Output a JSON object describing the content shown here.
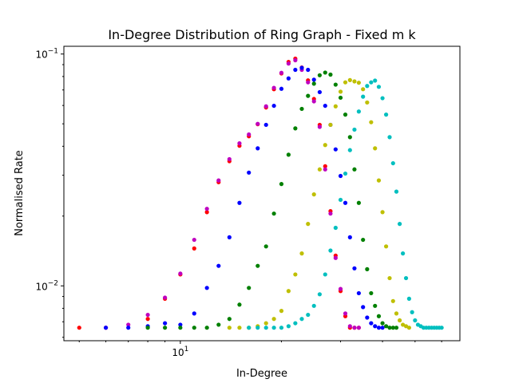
{
  "chart_data": {
    "type": "scatter",
    "title": "In-Degree Distribution of Ring Graph - Fixed m k",
    "xlabel": "In-Degree",
    "ylabel": "Normalised Rate",
    "xscale": "log",
    "yscale": "log",
    "xlim": [
      4.5,
      68
    ],
    "ylim": [
      0.0058,
      0.108
    ],
    "x_ticks": [
      {
        "value": 10,
        "base": "10",
        "exp": "1"
      }
    ],
    "y_ticks": [
      {
        "value": 0.01,
        "base": "10",
        "exp": "−2"
      },
      {
        "value": 0.1,
        "base": "10",
        "exp": "−1"
      }
    ],
    "legend": "none",
    "grid": false,
    "series": [
      {
        "color": "#ff0000",
        "points": [
          [
            5,
            0.0066
          ],
          [
            6,
            0.0066
          ],
          [
            8,
            0.0072
          ],
          [
            9,
            0.0088
          ],
          [
            10,
            0.0112
          ],
          [
            11,
            0.0145
          ],
          [
            12,
            0.0208
          ],
          [
            13,
            0.028
          ],
          [
            14,
            0.0345
          ],
          [
            15,
            0.0402
          ],
          [
            16,
            0.0442
          ],
          [
            17,
            0.0498
          ],
          [
            18,
            0.0588
          ],
          [
            19,
            0.0705
          ],
          [
            20,
            0.0825
          ],
          [
            21,
            0.0925
          ],
          [
            22,
            0.0955
          ],
          [
            23,
            0.0875
          ],
          [
            24,
            0.077
          ],
          [
            25,
            0.064
          ],
          [
            26,
            0.0495
          ],
          [
            27,
            0.0328
          ],
          [
            28,
            0.021
          ],
          [
            29,
            0.0135
          ],
          [
            30,
            0.0095
          ],
          [
            31,
            0.0074
          ],
          [
            32,
            0.0066
          ],
          [
            33,
            0.0066
          ],
          [
            34,
            0.0066
          ]
        ]
      },
      {
        "color": "#bf00bf",
        "points": [
          [
            6,
            0.0066
          ],
          [
            7,
            0.0068
          ],
          [
            8,
            0.0075
          ],
          [
            9,
            0.0089
          ],
          [
            10,
            0.0113
          ],
          [
            11,
            0.0158
          ],
          [
            12,
            0.0215
          ],
          [
            13,
            0.0285
          ],
          [
            14,
            0.0352
          ],
          [
            15,
            0.0412
          ],
          [
            16,
            0.045
          ],
          [
            17,
            0.05
          ],
          [
            18,
            0.0595
          ],
          [
            19,
            0.0715
          ],
          [
            20,
            0.083
          ],
          [
            21,
            0.091
          ],
          [
            22,
            0.094
          ],
          [
            23,
            0.0855
          ],
          [
            24,
            0.0755
          ],
          [
            25,
            0.0625
          ],
          [
            26,
            0.0485
          ],
          [
            27,
            0.0318
          ],
          [
            28,
            0.0205
          ],
          [
            29,
            0.0132
          ],
          [
            30,
            0.0097
          ],
          [
            31,
            0.0076
          ],
          [
            32,
            0.0067
          ],
          [
            33,
            0.0066
          ],
          [
            34,
            0.0066
          ]
        ]
      },
      {
        "color": "#0000ff",
        "points": [
          [
            6,
            0.0066
          ],
          [
            7,
            0.0066
          ],
          [
            8,
            0.0067
          ],
          [
            9,
            0.0069
          ],
          [
            10,
            0.0068
          ],
          [
            11,
            0.0076
          ],
          [
            12,
            0.0098
          ],
          [
            13,
            0.0122
          ],
          [
            14,
            0.0162
          ],
          [
            15,
            0.0228
          ],
          [
            16,
            0.0308
          ],
          [
            17,
            0.0392
          ],
          [
            18,
            0.0495
          ],
          [
            19,
            0.0598
          ],
          [
            20,
            0.0708
          ],
          [
            21,
            0.0785
          ],
          [
            22,
            0.0855
          ],
          [
            23,
            0.0872
          ],
          [
            24,
            0.0855
          ],
          [
            25,
            0.0775
          ],
          [
            26,
            0.0685
          ],
          [
            27,
            0.0598
          ],
          [
            28,
            0.0495
          ],
          [
            29,
            0.0388
          ],
          [
            30,
            0.0298
          ],
          [
            31,
            0.0228
          ],
          [
            32,
            0.0162
          ],
          [
            33,
            0.0119
          ],
          [
            34,
            0.0093
          ],
          [
            35,
            0.0081
          ],
          [
            36,
            0.0073
          ],
          [
            37,
            0.0069
          ],
          [
            38,
            0.0067
          ],
          [
            39,
            0.0066
          ],
          [
            40,
            0.0066
          ]
        ]
      },
      {
        "color": "#008000",
        "points": [
          [
            8,
            0.0066
          ],
          [
            9,
            0.0066
          ],
          [
            10,
            0.0066
          ],
          [
            11,
            0.0066
          ],
          [
            12,
            0.0066
          ],
          [
            13,
            0.0068
          ],
          [
            14,
            0.0072
          ],
          [
            15,
            0.0083
          ],
          [
            16,
            0.0098
          ],
          [
            17,
            0.0122
          ],
          [
            18,
            0.0148
          ],
          [
            19,
            0.0205
          ],
          [
            20,
            0.0275
          ],
          [
            21,
            0.0368
          ],
          [
            22,
            0.0478
          ],
          [
            23,
            0.058
          ],
          [
            24,
            0.066
          ],
          [
            25,
            0.0745
          ],
          [
            26,
            0.081
          ],
          [
            27,
            0.0832
          ],
          [
            28,
            0.0815
          ],
          [
            29,
            0.0738
          ],
          [
            30,
            0.0648
          ],
          [
            31,
            0.0548
          ],
          [
            32,
            0.0438
          ],
          [
            33,
            0.0318
          ],
          [
            34,
            0.0228
          ],
          [
            35,
            0.0158
          ],
          [
            36,
            0.0118
          ],
          [
            37,
            0.0093
          ],
          [
            38,
            0.0082
          ],
          [
            39,
            0.0074
          ],
          [
            40,
            0.0069
          ],
          [
            41,
            0.0067
          ],
          [
            42,
            0.0066
          ],
          [
            43,
            0.0066
          ],
          [
            44,
            0.0066
          ]
        ]
      },
      {
        "color": "#bfbf00",
        "points": [
          [
            14,
            0.0066
          ],
          [
            15,
            0.0066
          ],
          [
            16,
            0.0066
          ],
          [
            17,
            0.0067
          ],
          [
            18,
            0.0069
          ],
          [
            19,
            0.0072
          ],
          [
            20,
            0.0078
          ],
          [
            21,
            0.0095
          ],
          [
            22,
            0.0112
          ],
          [
            23,
            0.0138
          ],
          [
            24,
            0.0185
          ],
          [
            25,
            0.0248
          ],
          [
            26,
            0.0318
          ],
          [
            27,
            0.0405
          ],
          [
            28,
            0.0495
          ],
          [
            29,
            0.0595
          ],
          [
            30,
            0.0688
          ],
          [
            31,
            0.0755
          ],
          [
            32,
            0.0772
          ],
          [
            33,
            0.0762
          ],
          [
            34,
            0.0752
          ],
          [
            35,
            0.0705
          ],
          [
            36,
            0.0618
          ],
          [
            37,
            0.0508
          ],
          [
            38,
            0.0392
          ],
          [
            39,
            0.0285
          ],
          [
            40,
            0.0208
          ],
          [
            41,
            0.0148
          ],
          [
            42,
            0.0108
          ],
          [
            43,
            0.0086
          ],
          [
            44,
            0.0076
          ],
          [
            45,
            0.0071
          ],
          [
            46,
            0.0068
          ],
          [
            47,
            0.0067
          ],
          [
            48,
            0.0066
          ]
        ]
      },
      {
        "color": "#00bfbf",
        "points": [
          [
            16,
            0.0066
          ],
          [
            17,
            0.0066
          ],
          [
            18,
            0.0066
          ],
          [
            19,
            0.0066
          ],
          [
            20,
            0.0066
          ],
          [
            21,
            0.0067
          ],
          [
            22,
            0.0069
          ],
          [
            23,
            0.0072
          ],
          [
            24,
            0.0075
          ],
          [
            25,
            0.0082
          ],
          [
            26,
            0.0092
          ],
          [
            27,
            0.0112
          ],
          [
            28,
            0.0142
          ],
          [
            29,
            0.0178
          ],
          [
            30,
            0.0235
          ],
          [
            31,
            0.0305
          ],
          [
            32,
            0.0385
          ],
          [
            33,
            0.0472
          ],
          [
            34,
            0.0565
          ],
          [
            35,
            0.0655
          ],
          [
            36,
            0.0728
          ],
          [
            37,
            0.0755
          ],
          [
            38,
            0.0768
          ],
          [
            39,
            0.0722
          ],
          [
            40,
            0.0645
          ],
          [
            41,
            0.0548
          ],
          [
            42,
            0.0438
          ],
          [
            43,
            0.0338
          ],
          [
            44,
            0.0255
          ],
          [
            45,
            0.0185
          ],
          [
            46,
            0.0138
          ],
          [
            47,
            0.0108
          ],
          [
            48,
            0.0088
          ],
          [
            49,
            0.0077
          ],
          [
            50,
            0.0071
          ],
          [
            51,
            0.0068
          ],
          [
            52,
            0.0067
          ],
          [
            53,
            0.0066
          ],
          [
            54,
            0.0066
          ],
          [
            55,
            0.0066
          ],
          [
            56,
            0.0066
          ],
          [
            57,
            0.0066
          ],
          [
            58,
            0.0066
          ],
          [
            59,
            0.0066
          ],
          [
            60,
            0.0066
          ]
        ]
      }
    ]
  }
}
